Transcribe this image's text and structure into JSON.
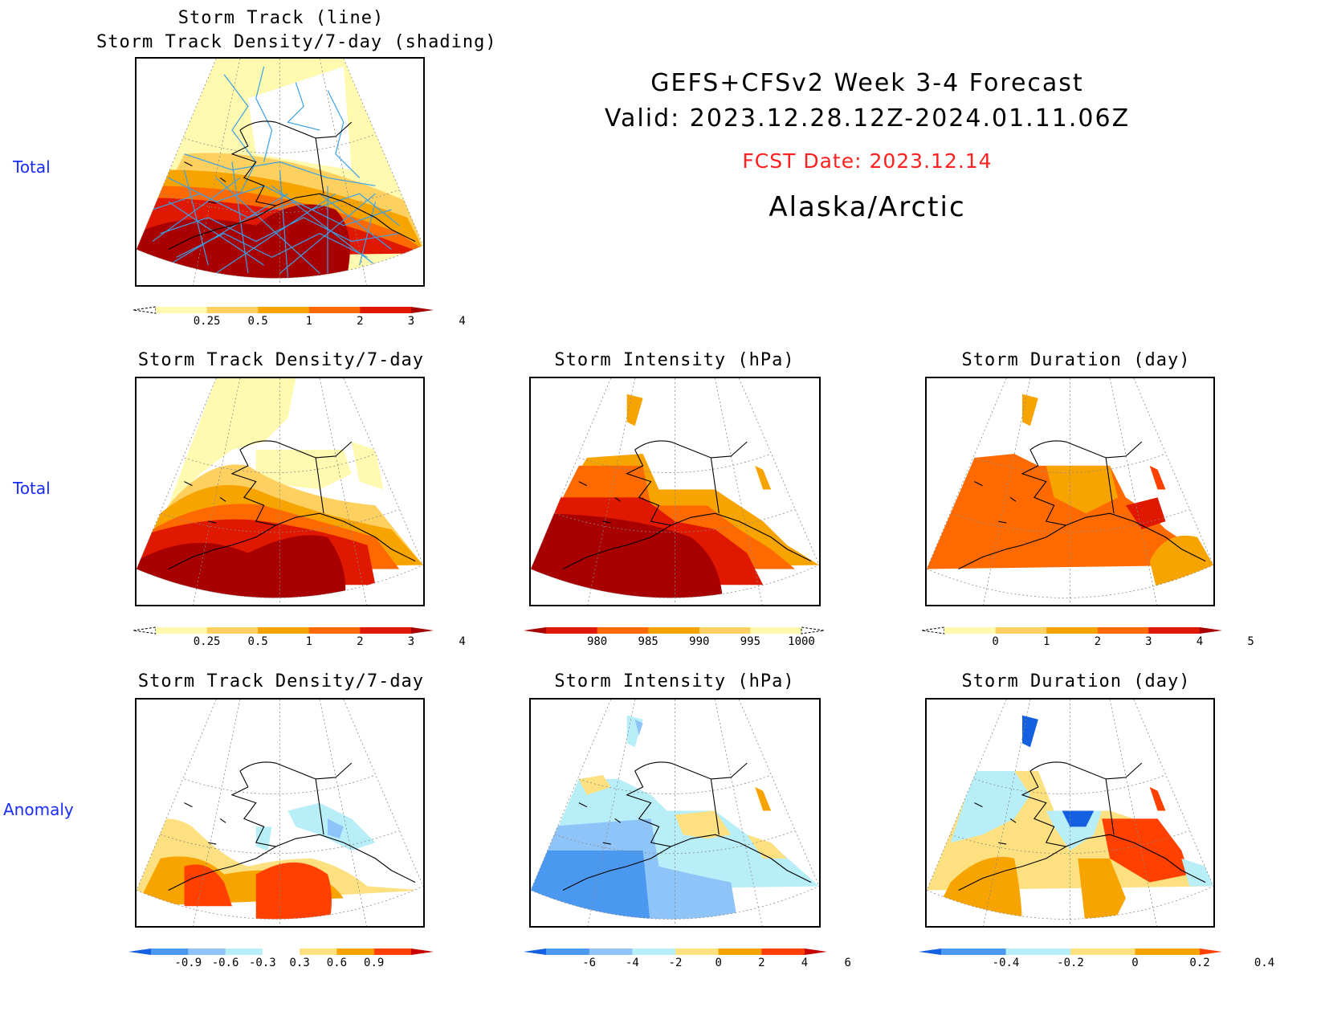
{
  "header": {
    "line1": "GEFS+CFSv2 Week 3-4 Forecast",
    "line2": "Valid: 2023.12.28.12Z-2024.01.11.06Z",
    "fcst": "FCST Date: 2023.12.14",
    "region": "Alaska/Arctic",
    "fcst_color": "#ff2020"
  },
  "row_labels": {
    "top": "Total",
    "middle": "Total",
    "bottom": "Anomaly"
  },
  "panels": {
    "track_title1": "Storm Track (line)",
    "track_title2": "Storm Track Density/7-day (shading)",
    "density_total_title": "Storm Track Density/7-day",
    "intensity_total_title": "Storm Intensity (hPa)",
    "duration_total_title": "Storm Duration (day)",
    "density_anom_title": "Storm Track Density/7-day",
    "intensity_anom_title": "Storm Intensity (hPa)",
    "duration_anom_title": "Storm Duration (day)"
  },
  "colorbars": {
    "density": {
      "labels": [
        "0.25",
        "0.5",
        "1",
        "2",
        "3",
        "4"
      ],
      "colors": [
        "#fffab0",
        "#fdd060",
        "#f7a400",
        "#ff6a00",
        "#e01800",
        "#a80000"
      ],
      "open_low": true
    },
    "intensity": {
      "labels": [
        "980",
        "985",
        "990",
        "995",
        "1000"
      ],
      "colors": [
        "#a80000",
        "#e01800",
        "#ff6a00",
        "#f7a400",
        "#fdd060",
        "#fffab0"
      ],
      "open_high": true
    },
    "duration": {
      "labels": [
        "0",
        "1",
        "2",
        "3",
        "4",
        "5"
      ],
      "colors": [
        "#fffab0",
        "#fdd060",
        "#f7a400",
        "#ff6a00",
        "#e01800",
        "#a80000"
      ],
      "open_low": true
    },
    "density_anom": {
      "labels": [
        "-0.9",
        "-0.6",
        "-0.3",
        "0.3",
        "0.6",
        "0.9"
      ],
      "colors": [
        "#1560e0",
        "#4a98f0",
        "#8ec4f8",
        "#b8eef8",
        "#ffffff",
        "#fde080",
        "#f7a400",
        "#ff4000",
        "#c80000"
      ]
    },
    "intensity_anom": {
      "labels": [
        "-6",
        "-4",
        "-2",
        "0",
        "2",
        "4",
        "6"
      ],
      "colors": [
        "#1560e0",
        "#4a98f0",
        "#8ec4f8",
        "#b8eef8",
        "#fde080",
        "#f7a400",
        "#ff4000",
        "#c80000"
      ]
    },
    "duration_anom": {
      "labels": [
        "-0.4",
        "-0.2",
        "0",
        "0.2",
        "0.4"
      ],
      "colors": [
        "#1560e0",
        "#4a98f0",
        "#b8eef8",
        "#fde080",
        "#f7a400",
        "#ff4000"
      ]
    }
  },
  "colors": {
    "row_label": "#1a2bff",
    "track_line": "#3aa0e8"
  }
}
